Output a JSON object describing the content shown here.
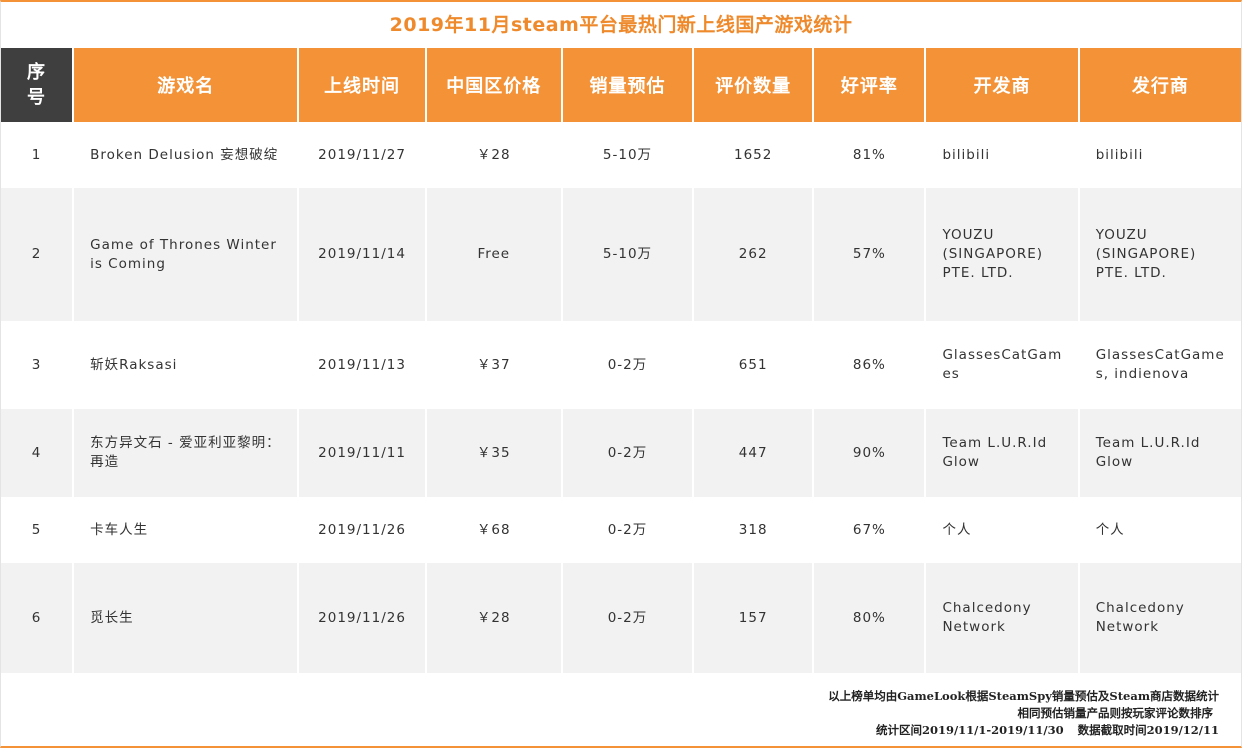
{
  "title": "2019年11月steam平台最热门新上线国产游戏统计",
  "headers": {
    "rank": "序号",
    "name": "游戏名",
    "date": "上线时间",
    "price": "中国区价格",
    "sales": "销量预估",
    "reviews": "评价数量",
    "rating": "好评率",
    "developer": "开发商",
    "publisher": "发行商"
  },
  "rows": [
    {
      "rank": "1",
      "name": "Broken Delusion 妄想破绽",
      "date": "2019/11/27",
      "price": "￥28",
      "sales": "5-10万",
      "reviews": "1652",
      "rating": "81%",
      "developer": "bilibili",
      "publisher": "bilibili"
    },
    {
      "rank": "2",
      "name": "Game of Thrones Winter is Coming",
      "date": "2019/11/14",
      "price": "Free",
      "sales": "5-10万",
      "reviews": "262",
      "rating": "57%",
      "developer": "YOUZU (SINGAPORE) PTE. LTD.",
      "publisher": "YOUZU (SINGAPORE) PTE. LTD."
    },
    {
      "rank": "3",
      "name": "斩妖Raksasi",
      "date": "2019/11/13",
      "price": "￥37",
      "sales": "0-2万",
      "reviews": "651",
      "rating": "86%",
      "developer": "GlassesCatGames",
      "publisher": "GlassesCatGames, indienova"
    },
    {
      "rank": "4",
      "name": "东方异文石 - 爱亚利亚黎明：再造",
      "date": "2019/11/11",
      "price": "￥35",
      "sales": "0-2万",
      "reviews": "447",
      "rating": "90%",
      "developer": "Team L.U.R.Id Glow",
      "publisher": "Team L.U.R.Id Glow"
    },
    {
      "rank": "5",
      "name": "卡车人生",
      "date": "2019/11/26",
      "price": "￥68",
      "sales": "0-2万",
      "reviews": "318",
      "rating": "67%",
      "developer": "个人",
      "publisher": "个人"
    },
    {
      "rank": "6",
      "name": "觅长生",
      "date": "2019/11/26",
      "price": "￥28",
      "sales": "0-2万",
      "reviews": "157",
      "rating": "80%",
      "developer": "Chalcedony Network",
      "publisher": "Chalcedony Network"
    }
  ],
  "footer": {
    "line1": "以上榜单均由GameLook根据SteamSpy销量预估及Steam商店数据统计",
    "line2": "相同预估销量产品则按玩家评论数排序",
    "period": "统计区间2019/11/1-2019/11/30",
    "capture": "数据截取时间2019/12/11"
  },
  "colors": {
    "accent": "#f39237",
    "rank_header": "#3f3f3f",
    "sales_high": "#f5a623",
    "sales_low": "#d0021b",
    "rating_good": "#2e9b46",
    "rating_bad": "#d0021b"
  }
}
